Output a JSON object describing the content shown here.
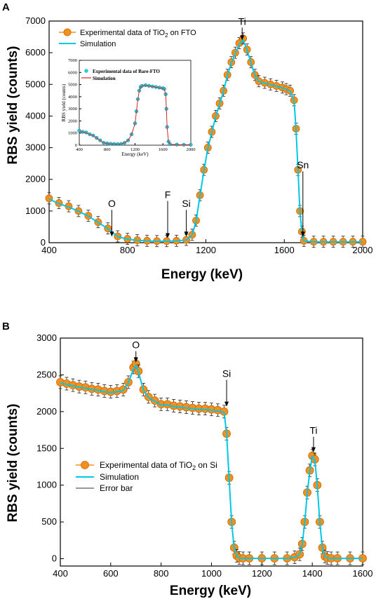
{
  "chart_data": [
    {
      "panel": "A",
      "type": "scatter",
      "xlabel": "Energy (keV)",
      "ylabel": "RBS yield (counts)",
      "xlim": [
        400,
        2000
      ],
      "ylim": [
        0,
        7000
      ],
      "xticks": [
        400,
        800,
        1200,
        1600,
        2000
      ],
      "yticks": [
        0,
        1000,
        2000,
        3000,
        4000,
        5000,
        6000,
        7000
      ],
      "legend": {
        "position": "top-left",
        "entries": [
          {
            "main": "Experimental data of TiO",
            "sub": "2",
            "tail": " on FTO"
          },
          {
            "main": "Simulation",
            "sub": "",
            "tail": ""
          }
        ]
      },
      "annotations": [
        {
          "text": "O",
          "x": 720,
          "y": 150
        },
        {
          "text": "F",
          "x": 1005,
          "y": 100
        },
        {
          "text": "Si",
          "x": 1100,
          "y": 150
        },
        {
          "text": "Ti",
          "x": 1385,
          "y": 6350
        },
        {
          "text": "Sn",
          "x": 1695,
          "y": 150
        }
      ],
      "series": [
        {
          "name": "Experimental data of TiO2 on FTO",
          "style": "markers",
          "color": "#f5901e",
          "x": [
            400,
            450,
            500,
            550,
            600,
            650,
            700,
            750,
            800,
            850,
            900,
            950,
            1000,
            1050,
            1100,
            1130,
            1150,
            1170,
            1190,
            1210,
            1230,
            1250,
            1270,
            1290,
            1310,
            1330,
            1350,
            1370,
            1390,
            1410,
            1430,
            1450,
            1470,
            1500,
            1530,
            1560,
            1590,
            1610,
            1630,
            1650,
            1660,
            1670,
            1680,
            1690,
            1700,
            1750,
            1800,
            1850,
            1900,
            1950,
            2000
          ],
          "y": [
            1400,
            1250,
            1150,
            1000,
            850,
            650,
            450,
            200,
            120,
            80,
            60,
            50,
            50,
            60,
            90,
            250,
            700,
            1500,
            2300,
            3000,
            3500,
            4000,
            4400,
            4800,
            5300,
            5700,
            6000,
            6300,
            6450,
            6100,
            5700,
            5300,
            5100,
            5050,
            5000,
            4950,
            4900,
            4850,
            4800,
            4500,
            3600,
            2300,
            1000,
            350,
            60,
            30,
            30,
            30,
            30,
            30,
            30
          ]
        },
        {
          "name": "Simulation",
          "style": "line",
          "color": "#00c8e6",
          "x": [
            400,
            450,
            500,
            550,
            600,
            650,
            700,
            750,
            800,
            850,
            900,
            950,
            1000,
            1050,
            1100,
            1130,
            1150,
            1170,
            1190,
            1210,
            1230,
            1250,
            1270,
            1290,
            1310,
            1330,
            1350,
            1370,
            1390,
            1410,
            1430,
            1450,
            1470,
            1500,
            1530,
            1560,
            1590,
            1610,
            1630,
            1650,
            1660,
            1670,
            1680,
            1690,
            1700,
            1750,
            1800,
            1850,
            1900,
            1950,
            2000
          ],
          "y": [
            1380,
            1230,
            1130,
            990,
            840,
            640,
            440,
            190,
            110,
            75,
            55,
            45,
            45,
            55,
            85,
            240,
            680,
            1480,
            2280,
            2980,
            3480,
            3980,
            4380,
            4780,
            5280,
            5680,
            5980,
            6260,
            6400,
            6080,
            5680,
            5290,
            5090,
            5040,
            4990,
            4940,
            4890,
            4840,
            4790,
            4490,
            3580,
            2280,
            990,
            340,
            55,
            25,
            25,
            25,
            25,
            25,
            25
          ]
        }
      ],
      "inset": {
        "xlabel": "Energy (keV)",
        "ylabel": "RBS yield (counts)",
        "xlim": [
          400,
          2000
        ],
        "ylim": [
          0,
          7000
        ],
        "xticks": [
          400,
          800,
          1200,
          1600,
          2000
        ],
        "yticks": [
          0,
          1000,
          2000,
          3000,
          4000,
          5000,
          6000,
          7000
        ],
        "legend": [
          "Experimental data of Bare-FTO",
          "Simulation"
        ],
        "series": [
          {
            "name": "Experimental data of Bare-FTO",
            "style": "markers",
            "color": "#28d4e6",
            "x": [
              400,
              450,
              500,
              550,
              600,
              650,
              700,
              750,
              800,
              850,
              900,
              950,
              1000,
              1050,
              1100,
              1150,
              1200,
              1220,
              1240,
              1260,
              1280,
              1300,
              1350,
              1400,
              1450,
              1500,
              1550,
              1600,
              1620,
              1640,
              1650,
              1660,
              1680,
              1700,
              1800,
              1900,
              2000
            ],
            "y": [
              1200,
              1100,
              1050,
              900,
              800,
              600,
              400,
              200,
              150,
              120,
              100,
              90,
              100,
              200,
              400,
              900,
              1800,
              2800,
              3800,
              4500,
              4800,
              4900,
              4950,
              4900,
              4850,
              4800,
              4750,
              4700,
              4650,
              4200,
              3000,
              1500,
              300,
              80,
              50,
              40,
              40
            ]
          },
          {
            "name": "Simulation",
            "style": "line",
            "color": "#d62728",
            "x": [
              400,
              450,
              500,
              550,
              600,
              650,
              700,
              750,
              800,
              850,
              900,
              950,
              1000,
              1050,
              1100,
              1150,
              1200,
              1220,
              1240,
              1260,
              1280,
              1300,
              1350,
              1400,
              1450,
              1500,
              1550,
              1600,
              1620,
              1640,
              1650,
              1660,
              1680,
              1700,
              1800,
              1900,
              2000
            ],
            "y": [
              1180,
              1080,
              1030,
              890,
              790,
              590,
              390,
              190,
              140,
              110,
              95,
              85,
              95,
              190,
              390,
              880,
              1780,
              2780,
              3780,
              4480,
              4780,
              4880,
              4930,
              4880,
              4830,
              4780,
              4730,
              4680,
              4630,
              4180,
              2980,
              1480,
              290,
              75,
              45,
              35,
              35
            ]
          }
        ]
      }
    },
    {
      "panel": "B",
      "type": "scatter",
      "xlabel": "Energy (keV)",
      "ylabel": "RBS yield (counts)",
      "xlim": [
        400,
        1600
      ],
      "ylim": [
        -100,
        3000
      ],
      "xticks": [
        400,
        600,
        800,
        1000,
        1200,
        1400,
        1600
      ],
      "yticks": [
        0,
        500,
        1000,
        1500,
        2000,
        2500,
        3000
      ],
      "legend": {
        "position": "lower-left",
        "entries": [
          {
            "main": "Experimental data of TiO",
            "sub": "2",
            "tail": " on Si"
          },
          {
            "main": "Simulation",
            "sub": "",
            "tail": ""
          },
          {
            "main": "Error bar",
            "sub": "",
            "tail": ""
          }
        ]
      },
      "annotations": [
        {
          "text": "O",
          "x": 700,
          "y": 2650
        },
        {
          "text": "Si",
          "x": 1060,
          "y": 2050
        },
        {
          "text": "Ti",
          "x": 1405,
          "y": 1430
        }
      ],
      "series": [
        {
          "name": "Experimental data of TiO2 on Si",
          "style": "markers",
          "color": "#f5901e",
          "x": [
            400,
            425,
            450,
            475,
            500,
            525,
            550,
            575,
            600,
            625,
            650,
            670,
            690,
            700,
            710,
            730,
            750,
            775,
            800,
            825,
            850,
            875,
            900,
            925,
            950,
            975,
            1000,
            1025,
            1050,
            1060,
            1070,
            1080,
            1090,
            1100,
            1110,
            1125,
            1150,
            1200,
            1250,
            1300,
            1330,
            1350,
            1360,
            1370,
            1380,
            1390,
            1400,
            1410,
            1420,
            1430,
            1440,
            1450,
            1460,
            1475,
            1500,
            1550,
            1600
          ],
          "y": [
            2400,
            2380,
            2360,
            2340,
            2330,
            2310,
            2300,
            2280,
            2270,
            2280,
            2300,
            2400,
            2600,
            2650,
            2550,
            2300,
            2200,
            2150,
            2100,
            2100,
            2080,
            2070,
            2060,
            2050,
            2040,
            2040,
            2030,
            2020,
            2000,
            1700,
            1100,
            500,
            150,
            40,
            10,
            5,
            5,
            5,
            5,
            5,
            20,
            60,
            200,
            500,
            900,
            1200,
            1400,
            1350,
            1000,
            500,
            150,
            30,
            10,
            5,
            5,
            5,
            5
          ]
        },
        {
          "name": "Simulation",
          "style": "line",
          "color": "#00c8e6",
          "x": [
            400,
            425,
            450,
            475,
            500,
            525,
            550,
            575,
            600,
            625,
            650,
            670,
            690,
            700,
            710,
            730,
            750,
            775,
            800,
            825,
            850,
            875,
            900,
            925,
            950,
            975,
            1000,
            1025,
            1050,
            1060,
            1070,
            1080,
            1090,
            1100,
            1110,
            1125,
            1150,
            1200,
            1250,
            1300,
            1330,
            1350,
            1360,
            1370,
            1380,
            1390,
            1400,
            1410,
            1420,
            1430,
            1440,
            1450,
            1460,
            1475,
            1500,
            1550,
            1600
          ],
          "y": [
            2390,
            2370,
            2350,
            2330,
            2320,
            2300,
            2290,
            2270,
            2260,
            2270,
            2290,
            2390,
            2580,
            2630,
            2540,
            2290,
            2190,
            2140,
            2090,
            2090,
            2070,
            2060,
            2050,
            2040,
            2030,
            2030,
            2020,
            2010,
            1990,
            1690,
            1090,
            490,
            145,
            38,
            9,
            4,
            4,
            4,
            4,
            4,
            18,
            58,
            195,
            495,
            890,
            1190,
            1390,
            1340,
            990,
            495,
            145,
            28,
            9,
            4,
            4,
            4,
            4
          ]
        }
      ]
    }
  ]
}
